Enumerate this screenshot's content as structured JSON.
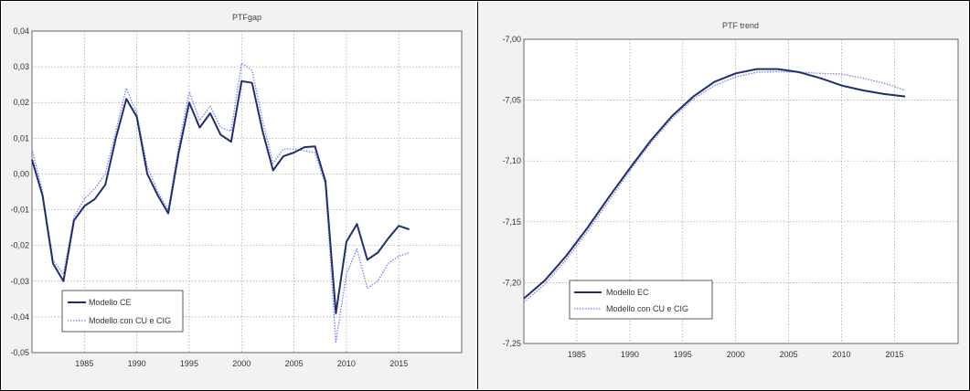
{
  "chart_data": [
    {
      "type": "line",
      "title": "PTFgap",
      "xlabel": "",
      "ylabel": "",
      "xlim": [
        1980,
        2021
      ],
      "ylim": [
        -0.05,
        0.04
      ],
      "xticks": [
        1985,
        1990,
        1995,
        2000,
        2005,
        2010,
        2015
      ],
      "xtick_labels": [
        "1985",
        "1990",
        "1995",
        "2000",
        "2005",
        "2010",
        "2015"
      ],
      "yticks": [
        -0.05,
        -0.04,
        -0.03,
        -0.02,
        -0.01,
        0.0,
        0.01,
        0.02,
        0.03,
        0.04
      ],
      "ytick_labels": [
        "-0,05",
        "-0,04",
        "-0,03",
        "-0,02",
        "-0,01",
        "0,00",
        "0,01",
        "0,02",
        "0,03",
        "0,04"
      ],
      "grid": true,
      "legend": "bottom-left",
      "series": [
        {
          "name": "Modello CE",
          "color": "#1f2f6e",
          "style": "solid",
          "x": [
            1980,
            1981,
            1982,
            1983,
            1984,
            1985,
            1986,
            1987,
            1988,
            1989,
            1990,
            1991,
            1992,
            1993,
            1994,
            1995,
            1996,
            1997,
            1998,
            1999,
            2000,
            2001,
            2002,
            2003,
            2004,
            2005,
            2006,
            2007,
            2008,
            2009,
            2010,
            2011,
            2012,
            2013,
            2014,
            2015,
            2016
          ],
          "values": [
            0.004,
            -0.006,
            -0.025,
            -0.03,
            -0.013,
            -0.009,
            -0.007,
            -0.003,
            0.01,
            0.021,
            0.016,
            0.0,
            -0.006,
            -0.011,
            0.006,
            0.02,
            0.013,
            0.017,
            0.011,
            0.009,
            0.026,
            0.0255,
            0.012,
            0.001,
            0.005,
            0.006,
            0.0075,
            0.0077,
            -0.002,
            -0.039,
            -0.019,
            -0.014,
            -0.024,
            -0.022,
            -0.018,
            -0.0145,
            -0.0155
          ]
        },
        {
          "name": "Modello con CU e CIG",
          "color": "#7b7bf0",
          "style": "dotted",
          "x": [
            1980,
            1981,
            1982,
            1983,
            1984,
            1985,
            1986,
            1987,
            1988,
            1989,
            1990,
            1991,
            1992,
            1993,
            1994,
            1995,
            1996,
            1997,
            1998,
            1999,
            2000,
            2001,
            2002,
            2003,
            2004,
            2005,
            2006,
            2007,
            2008,
            2009,
            2010,
            2011,
            2012,
            2013,
            2014,
            2015,
            2016
          ],
          "values": [
            0.007,
            -0.005,
            -0.024,
            -0.028,
            -0.012,
            -0.007,
            -0.004,
            0.0,
            0.012,
            0.024,
            0.017,
            0.002,
            -0.005,
            -0.01,
            0.008,
            0.023,
            0.015,
            0.019,
            0.013,
            0.012,
            0.031,
            0.029,
            0.015,
            0.003,
            0.007,
            0.007,
            0.0065,
            0.006,
            -0.003,
            -0.047,
            -0.028,
            -0.021,
            -0.032,
            -0.03,
            -0.025,
            -0.023,
            -0.022
          ]
        }
      ]
    },
    {
      "type": "line",
      "title": "PTF trend",
      "xlabel": "",
      "ylabel": "",
      "xlim": [
        1980,
        2021
      ],
      "ylim": [
        -7.25,
        -7.0
      ],
      "xticks": [
        1985,
        1990,
        1995,
        2000,
        2005,
        2010,
        2015
      ],
      "xtick_labels": [
        "1985",
        "1990",
        "1995",
        "2000",
        "2005",
        "2010",
        "2015"
      ],
      "yticks": [
        -7.25,
        -7.2,
        -7.15,
        -7.1,
        -7.05,
        -7.0
      ],
      "ytick_labels": [
        "-7,25",
        "-7,20",
        "-7,15",
        "-7,10",
        "-7,05",
        "-7,00"
      ],
      "grid": true,
      "legend": "bottom-left",
      "series": [
        {
          "name": "Modello EC",
          "color": "#1f2f6e",
          "style": "solid",
          "x": [
            1980,
            1982,
            1984,
            1986,
            1988,
            1990,
            1992,
            1994,
            1996,
            1998,
            2000,
            2002,
            2004,
            2006,
            2008,
            2010,
            2012,
            2014,
            2016
          ],
          "values": [
            -7.213,
            -7.198,
            -7.178,
            -7.155,
            -7.13,
            -7.106,
            -7.083,
            -7.063,
            -7.047,
            -7.035,
            -7.028,
            -7.0245,
            -7.0245,
            -7.027,
            -7.032,
            -7.038,
            -7.042,
            -7.045,
            -7.047
          ]
        },
        {
          "name": "Modello con CU e CIG",
          "color": "#7b7bf0",
          "style": "dotted",
          "x": [
            1980,
            1982,
            1984,
            1986,
            1988,
            1990,
            1992,
            1994,
            1996,
            1998,
            2000,
            2002,
            2004,
            2006,
            2008,
            2010,
            2012,
            2014,
            2016
          ],
          "values": [
            -7.216,
            -7.201,
            -7.181,
            -7.158,
            -7.133,
            -7.108,
            -7.085,
            -7.065,
            -7.049,
            -7.038,
            -7.031,
            -7.027,
            -7.0265,
            -7.027,
            -7.028,
            -7.0285,
            -7.032,
            -7.036,
            -7.042
          ]
        }
      ]
    }
  ]
}
